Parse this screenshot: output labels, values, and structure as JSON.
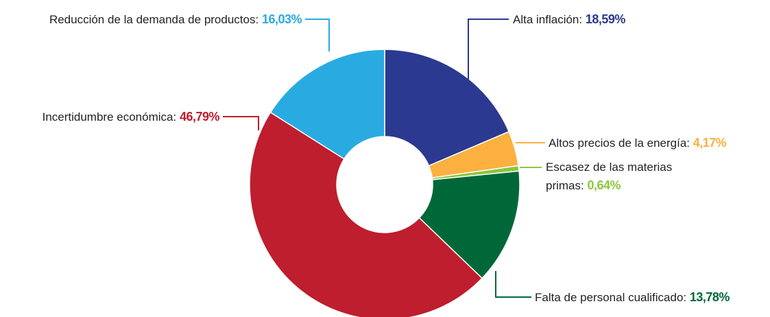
{
  "chart_data": {
    "type": "donut",
    "categories": [
      "Alta inflación:",
      "Altos precios de la energía:",
      "Escasez de las materias primas:",
      "Falta de personal cualificado:",
      "Incertidumbre económica:",
      "Reducción de la demanda de productos:"
    ],
    "values": [
      18.59,
      4.17,
      0.64,
      13.78,
      46.79,
      16.03
    ],
    "value_labels": [
      "18,59%",
      "4,17%",
      "0,64%",
      "13,78%",
      "46,79%",
      "16,03%"
    ],
    "colors": [
      "#2b3990",
      "#fbb040",
      "#8dc63f",
      "#006838",
      "#be1e2d",
      "#29abe2"
    ]
  }
}
